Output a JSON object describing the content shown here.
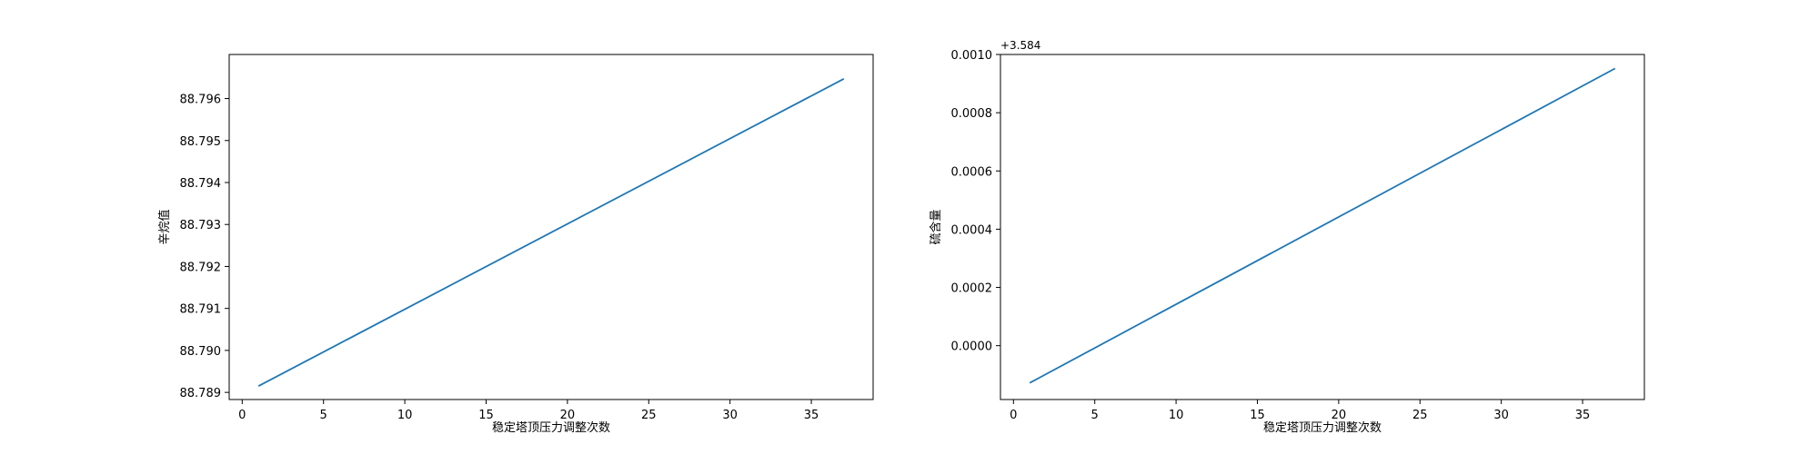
{
  "chart_data": [
    {
      "type": "line",
      "title": "",
      "xlabel": "稳定塔顶压力调整次数",
      "ylabel": "辛烷值",
      "x_offset_label": "",
      "y_offset_label": "",
      "xlim": [
        -0.8,
        38.8
      ],
      "ylim": [
        88.78883,
        88.79705
      ],
      "xticks": [
        0,
        5,
        10,
        15,
        20,
        25,
        30,
        35
      ],
      "xtick_labels": [
        "0",
        "5",
        "10",
        "15",
        "20",
        "25",
        "30",
        "35"
      ],
      "yticks": [
        88.789,
        88.79,
        88.791,
        88.792,
        88.793,
        88.794,
        88.795,
        88.796
      ],
      "ytick_labels": [
        "88.789",
        "88.790",
        "88.791",
        "88.792",
        "88.793",
        "88.794",
        "88.795",
        "88.796"
      ],
      "grid": false,
      "series": [
        {
          "color": "#1f77b4",
          "x": [
            1,
            37
          ],
          "y": [
            88.78915,
            88.79647
          ]
        }
      ]
    },
    {
      "type": "line",
      "title": "",
      "xlabel": "稳定塔顶压力调整次数",
      "ylabel": "硫含量",
      "x_offset_label": "",
      "y_offset_label": "+3.584",
      "xlim": [
        -0.8,
        38.8
      ],
      "ylim": [
        -0.000185,
        0.001
      ],
      "xticks": [
        0,
        5,
        10,
        15,
        20,
        25,
        30,
        35
      ],
      "xtick_labels": [
        "0",
        "5",
        "10",
        "15",
        "20",
        "25",
        "30",
        "35"
      ],
      "yticks": [
        0.0,
        0.0002,
        0.0004,
        0.0006,
        0.0008,
        0.001
      ],
      "ytick_labels": [
        "0.0000",
        "0.0002",
        "0.0004",
        "0.0006",
        "0.0008",
        "0.0010"
      ],
      "grid": false,
      "series": [
        {
          "color": "#1f77b4",
          "x": [
            1,
            37
          ],
          "y": [
            -0.000128,
            0.000952
          ]
        }
      ]
    }
  ]
}
